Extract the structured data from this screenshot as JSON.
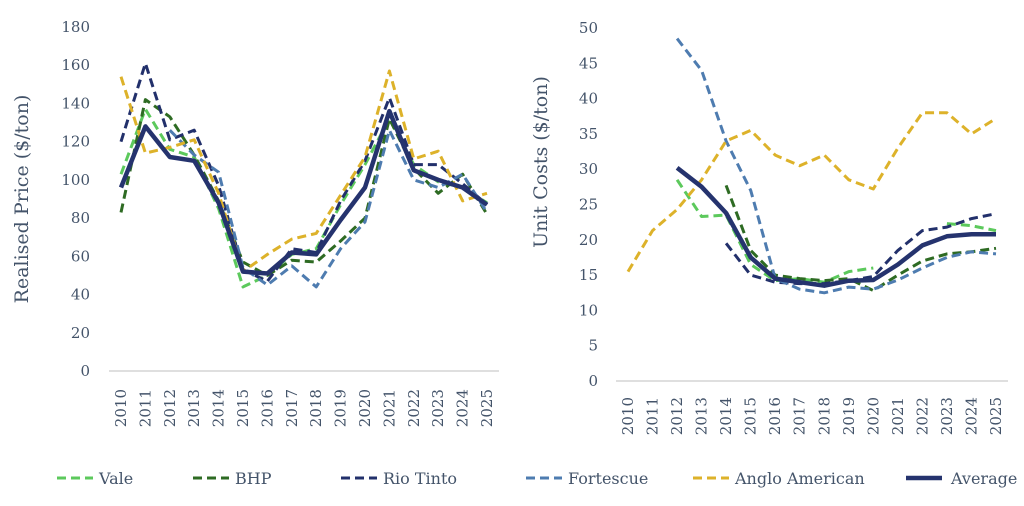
{
  "colors": {
    "Vale": "#5CC95C",
    "BHP": "#2E6B23",
    "Rio Tinto": "#22306B",
    "Fortescue": "#4E7CB0",
    "Anglo American": "#DDB22A",
    "Average": "#25336E",
    "text": "#44546A",
    "axis": "#BFBFBF"
  },
  "legend": [
    "Vale",
    "BHP",
    "Rio Tinto",
    "Fortescue",
    "Anglo American",
    "Average"
  ],
  "chart_data": [
    {
      "type": "line",
      "title": "",
      "ylabel": "Realised Price ($/ton)",
      "xlabel": "",
      "ylim": [
        0,
        180
      ],
      "yticks": [
        0,
        20,
        40,
        60,
        80,
        100,
        120,
        140,
        160,
        180
      ],
      "categories": [
        "2010",
        "2011",
        "2012",
        "2013",
        "2014",
        "2015",
        "2016",
        "2017",
        "2018",
        "2019",
        "2020",
        "2021",
        "2022",
        "2023",
        "2024",
        "2025"
      ],
      "series": [
        {
          "name": "Vale",
          "style": "dashed",
          "values": [
            103,
            137,
            116,
            112,
            85,
            44,
            50,
            61,
            64,
            87,
            108,
            132,
            108,
            99,
            96,
            88
          ]
        },
        {
          "name": "BHP",
          "style": "dashed",
          "values": [
            83,
            142,
            133,
            113,
            89,
            57,
            50,
            58,
            57,
            68,
            80,
            132,
            106,
            93,
            103,
            82
          ]
        },
        {
          "name": "Rio Tinto",
          "style": "dashed",
          "values": [
            120,
            161,
            121,
            126,
            97,
            53,
            47,
            64,
            62,
            89,
            110,
            143,
            108,
            108,
            98,
            87
          ]
        },
        {
          "name": "Fortescue",
          "style": "dashed",
          "values": [
            null,
            null,
            126,
            113,
            104,
            54,
            45,
            55,
            44,
            64,
            78,
            126,
            100,
            96,
            103,
            83
          ]
        },
        {
          "name": "Anglo American",
          "style": "dashed",
          "values": [
            154,
            114,
            117,
            121,
            93,
            52,
            61,
            69,
            72,
            92,
            112,
            157,
            111,
            115,
            89,
            93
          ]
        },
        {
          "name": "Average",
          "style": "solid",
          "values": [
            96,
            128,
            112,
            110,
            88,
            52,
            51,
            62,
            61,
            79,
            96,
            136,
            105,
            100,
            96,
            87
          ]
        }
      ]
    },
    {
      "type": "line",
      "title": "",
      "ylabel": "Unit Costs ($/ton)",
      "xlabel": "",
      "ylim": [
        0,
        50
      ],
      "yticks": [
        0,
        5,
        10,
        15,
        20,
        25,
        30,
        35,
        40,
        45,
        50
      ],
      "categories": [
        "2010",
        "2011",
        "2012",
        "2013",
        "2014",
        "2015",
        "2016",
        "2017",
        "2018",
        "2019",
        "2020",
        "2021",
        "2022",
        "2023",
        "2024",
        "2025"
      ],
      "series": [
        {
          "name": "Vale",
          "style": "dashed",
          "values": [
            null,
            null,
            28.5,
            23.3,
            23.5,
            16.5,
            14.2,
            14.5,
            14.0,
            15.5,
            16.0,
            null,
            null,
            22.3,
            22.0,
            21.3
          ]
        },
        {
          "name": "BHP",
          "style": "dashed",
          "values": [
            null,
            null,
            null,
            null,
            27.7,
            18.5,
            15.0,
            14.5,
            14.2,
            14.5,
            12.8,
            15.0,
            17.0,
            18.0,
            18.3,
            18.8
          ]
        },
        {
          "name": "Rio Tinto",
          "style": "dashed",
          "values": [
            null,
            null,
            null,
            null,
            19.5,
            15.0,
            14.0,
            13.8,
            13.8,
            14.2,
            14.8,
            18.5,
            21.3,
            21.8,
            23.0,
            23.7
          ]
        },
        {
          "name": "Fortescue",
          "style": "dashed",
          "values": [
            null,
            null,
            48.5,
            44.0,
            34.0,
            27.0,
            14.5,
            13.0,
            12.5,
            13.3,
            13.0,
            14.3,
            16.0,
            17.5,
            18.3,
            18.0
          ]
        },
        {
          "name": "Anglo American",
          "style": "dashed",
          "values": [
            15.5,
            21.3,
            24.3,
            28.5,
            34.0,
            35.5,
            32.0,
            30.5,
            32.0,
            28.5,
            27.2,
            33.0,
            38.0,
            38.0,
            35.0,
            37.2
          ]
        },
        {
          "name": "Average",
          "style": "solid",
          "values": [
            null,
            null,
            30.2,
            27.5,
            23.8,
            17.5,
            14.5,
            14.0,
            13.5,
            14.2,
            14.3,
            16.5,
            19.2,
            20.5,
            20.8,
            20.8
          ]
        }
      ]
    }
  ]
}
